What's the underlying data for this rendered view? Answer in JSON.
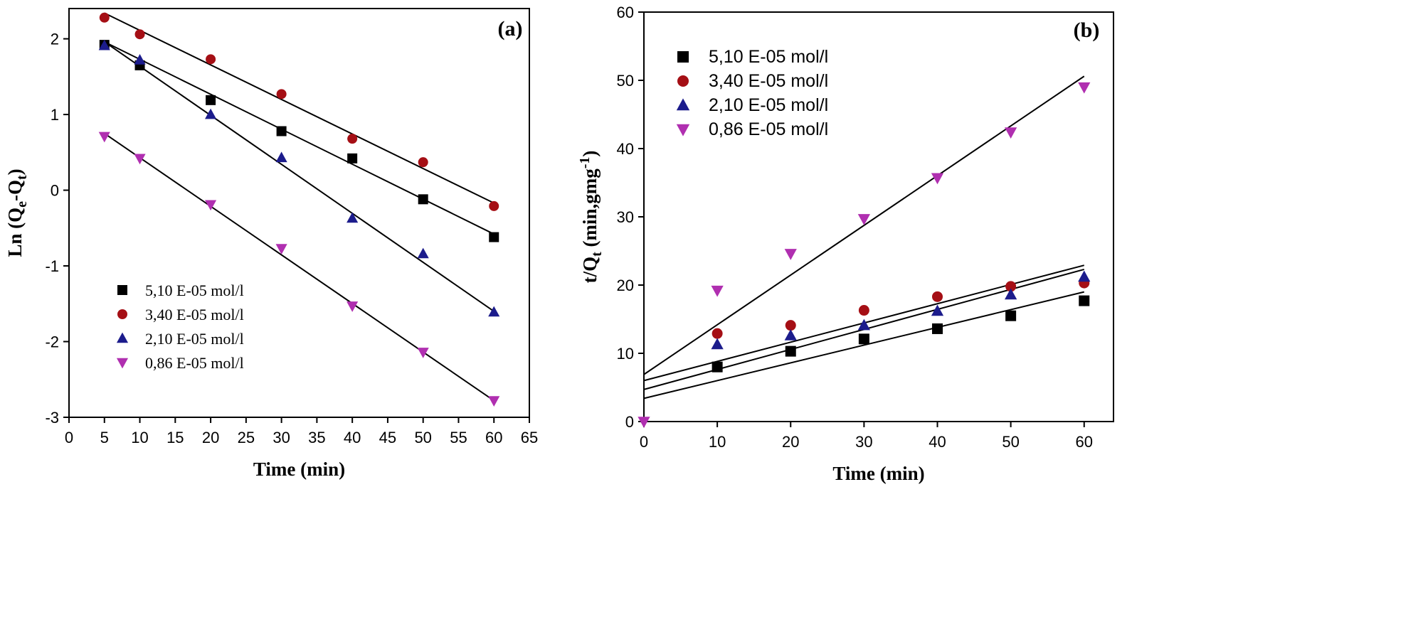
{
  "chart_data": [
    {
      "type": "scatter",
      "panel_label": "(a)",
      "xlabel": "Time (min)",
      "ylabel": {
        "base": "Ln (Q",
        "sub1": "e",
        "mid": "-Q",
        "sub2": "t",
        "end": ")"
      },
      "xlim": [
        0,
        65
      ],
      "ylim": [
        -3,
        2.4
      ],
      "xticks": [
        0,
        5,
        10,
        15,
        20,
        25,
        30,
        35,
        40,
        45,
        50,
        55,
        60,
        65
      ],
      "yticks": [
        -3,
        -2,
        -1,
        0,
        1,
        2
      ],
      "legend_position": "bottom-left",
      "series": [
        {
          "name": "5,10 E-05 mol/l",
          "marker": "square",
          "color": "#000000",
          "x": [
            5,
            10,
            20,
            30,
            40,
            50,
            60
          ],
          "y": [
            1.92,
            1.65,
            1.19,
            0.78,
            0.42,
            -0.12,
            -0.62
          ],
          "fit": [
            [
              5,
              1.96
            ],
            [
              60,
              -0.58
            ]
          ]
        },
        {
          "name": "3,40 E-05 mol/l",
          "marker": "circle",
          "color": "#a50f15",
          "x": [
            5,
            10,
            20,
            30,
            40,
            50,
            60
          ],
          "y": [
            2.28,
            2.06,
            1.73,
            1.27,
            0.68,
            0.37,
            -0.21
          ],
          "fit": [
            [
              5,
              2.34
            ],
            [
              60,
              -0.17
            ]
          ]
        },
        {
          "name": "2,10 E-05 mol/l",
          "marker": "triangle-up",
          "color": "#1c1c8c",
          "x": [
            5,
            10,
            20,
            30,
            40,
            50,
            60
          ],
          "y": [
            1.91,
            1.72,
            1.0,
            0.43,
            -0.37,
            -0.84,
            -1.61
          ],
          "fit": [
            [
              5,
              1.96
            ],
            [
              60,
              -1.6
            ]
          ]
        },
        {
          "name": "0,86 E-05 mol/l",
          "marker": "triangle-down",
          "color": "#b02fb0",
          "x": [
            5,
            10,
            20,
            30,
            40,
            50,
            60
          ],
          "y": [
            0.71,
            0.42,
            -0.19,
            -0.77,
            -1.53,
            -2.14,
            -2.78
          ],
          "fit": [
            [
              5,
              0.75
            ],
            [
              60,
              -2.78
            ]
          ]
        }
      ]
    },
    {
      "type": "scatter",
      "panel_label": "(b)",
      "xlabel": "Time (min)",
      "ylabel": {
        "base": "t/Q",
        "sub1": "t",
        "mid": " (min,gmg",
        "sup": "-1",
        "end": ")"
      },
      "xlim": [
        0,
        64
      ],
      "ylim": [
        0,
        60
      ],
      "xticks": [
        0,
        10,
        20,
        30,
        40,
        50,
        60
      ],
      "yticks": [
        0,
        10,
        20,
        30,
        40,
        50,
        60
      ],
      "legend_position": "top-left",
      "series": [
        {
          "name": "5,10 E-05 mol/l",
          "marker": "square",
          "color": "#000000",
          "x": [
            10,
            20,
            30,
            40,
            50,
            60
          ],
          "y": [
            8.0,
            10.3,
            12.1,
            13.6,
            15.5,
            17.7
          ],
          "fit": [
            [
              0,
              3.4
            ],
            [
              60,
              19.0
            ]
          ]
        },
        {
          "name": "3,40 E-05 mol/l",
          "marker": "circle",
          "color": "#a50f15",
          "x": [
            10,
            20,
            30,
            40,
            50,
            60
          ],
          "y": [
            12.9,
            14.1,
            16.3,
            18.3,
            19.8,
            20.3
          ],
          "fit": [
            [
              0,
              6.0
            ],
            [
              60,
              22.9
            ]
          ]
        },
        {
          "name": "2,10 E-05 mol/l",
          "marker": "triangle-up",
          "color": "#1c1c8c",
          "x": [
            10,
            20,
            30,
            40,
            50,
            60
          ],
          "y": [
            11.3,
            12.6,
            14.1,
            16.2,
            18.6,
            21.2
          ],
          "fit": [
            [
              0,
              4.7
            ],
            [
              60,
              22.3
            ]
          ]
        },
        {
          "name": "0,86 E-05 mol/l",
          "marker": "triangle-down",
          "color": "#b02fb0",
          "x": [
            0,
            10,
            20,
            30,
            40,
            50,
            60
          ],
          "y": [
            0.0,
            19.2,
            24.6,
            29.7,
            35.7,
            42.4,
            49.0
          ],
          "fit": [
            [
              0,
              6.9
            ],
            [
              60,
              50.6
            ]
          ]
        }
      ]
    }
  ]
}
